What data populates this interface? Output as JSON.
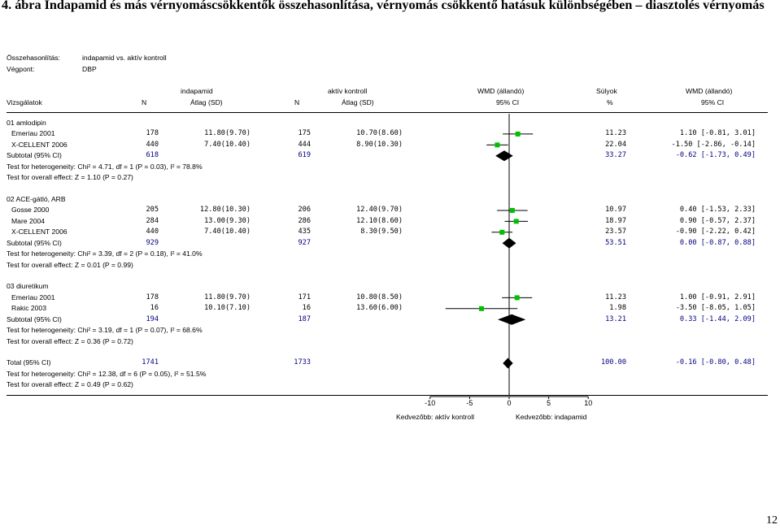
{
  "figure_title": "4. ábra Indapamid és más vérnyomáscsökkentők összehasonlítása, vérnyomás csökkentő hatásuk különbségében – diasztolés vérnyomás",
  "page_number": "12",
  "meta": {
    "comparison_label": "Összehasonlítás:",
    "comparison_value": "indapamid vs. aktív kontroll",
    "outcome_label": "Végpont:",
    "outcome_value": "DBP"
  },
  "headers": {
    "group1": "indapamid",
    "group2": "aktív kontroll",
    "wmd": "WMD (állandó)",
    "weight": "Súlyok",
    "wmd2": "WMD (állandó)",
    "study": "Vizsgálatok",
    "n1": "N",
    "mean1": "Átlag (SD)",
    "n2": "N",
    "mean2": "Átlag (SD)",
    "ci": "95% CI",
    "pct": "%",
    "ci2": "95% CI"
  },
  "chart_data": {
    "type": "forest",
    "x_ticks": [
      -10,
      -5,
      0,
      5,
      10
    ],
    "xlim": [
      -10,
      10
    ],
    "xlabel_left": "Kedvezőbb: aktív kontroll",
    "xlabel_right": "Kedvezőbb: indapamid",
    "rows": [
      {
        "kind": "group",
        "label": "01 amlodipin"
      },
      {
        "kind": "study",
        "label": "Emeriau 2001",
        "n1": "178",
        "m1": "11.80(9.70)",
        "n2": "175",
        "m2": "10.70(8.60)",
        "w": "11.23",
        "ci": "1.10 [-0.81, 3.01]",
        "est": 1.1,
        "lo": -0.81,
        "hi": 3.01
      },
      {
        "kind": "study",
        "label": "X-CELLENT 2006",
        "n1": "440",
        "m1": "7.40(10.40)",
        "n2": "444",
        "m2": "8.90(10.30)",
        "w": "22.04",
        "ci": "-1.50 [-2.86, -0.14]",
        "est": -1.5,
        "lo": -2.86,
        "hi": -0.14
      },
      {
        "kind": "subtotal",
        "label": "Subtotal (95% CI)",
        "n1": "618",
        "n2": "619",
        "w": "33.27",
        "ci": "-0.62 [-1.73, 0.49]",
        "est": -0.62,
        "lo": -1.73,
        "hi": 0.49
      },
      {
        "kind": "text",
        "label": "Test for heterogeneity: Chi² = 4.71, df = 1 (P = 0.03), I² = 78.8%"
      },
      {
        "kind": "text",
        "label": "Test for overall effect: Z = 1.10 (P = 0.27)"
      },
      {
        "kind": "blank"
      },
      {
        "kind": "group",
        "label": "02 ACE-gátló, ARB"
      },
      {
        "kind": "study",
        "label": "Gosse 2000",
        "n1": "205",
        "m1": "12.80(10.30)",
        "n2": "206",
        "m2": "12.40(9.70)",
        "w": "10.97",
        "ci": "0.40 [-1.53, 2.33]",
        "est": 0.4,
        "lo": -1.53,
        "hi": 2.33
      },
      {
        "kind": "study",
        "label": "Mare 2004",
        "n1": "284",
        "m1": "13.00(9.30)",
        "n2": "286",
        "m2": "12.10(8.60)",
        "w": "18.97",
        "ci": "0.90 [-0.57, 2.37]",
        "est": 0.9,
        "lo": -0.57,
        "hi": 2.37
      },
      {
        "kind": "study",
        "label": "X-CELLENT 2006",
        "n1": "440",
        "m1": "7.40(10.40)",
        "n2": "435",
        "m2": "8.30(9.50)",
        "w": "23.57",
        "ci": "-0.90 [-2.22, 0.42]",
        "est": -0.9,
        "lo": -2.22,
        "hi": 0.42
      },
      {
        "kind": "subtotal",
        "label": "Subtotal (95% CI)",
        "n1": "929",
        "n2": "927",
        "w": "53.51",
        "ci": "0.00 [-0.87, 0.88]",
        "est": 0.0,
        "lo": -0.87,
        "hi": 0.88
      },
      {
        "kind": "text",
        "label": "Test for heterogeneity: Chi² = 3.39, df = 2 (P = 0.18), I² = 41.0%"
      },
      {
        "kind": "text",
        "label": "Test for overall effect: Z = 0.01 (P = 0.99)"
      },
      {
        "kind": "blank"
      },
      {
        "kind": "group",
        "label": "03 diuretikum"
      },
      {
        "kind": "study",
        "label": "Emeriau 2001",
        "n1": "178",
        "m1": "11.80(9.70)",
        "n2": "171",
        "m2": "10.80(8.50)",
        "w": "11.23",
        "ci": "1.00 [-0.91, 2.91]",
        "est": 1.0,
        "lo": -0.91,
        "hi": 2.91
      },
      {
        "kind": "study",
        "label": "Rakic 2003",
        "n1": "16",
        "m1": "10.10(7.10)",
        "n2": "16",
        "m2": "13.60(6.00)",
        "w": "1.98",
        "ci": "-3.50 [-8.05, 1.05]",
        "est": -3.5,
        "lo": -8.05,
        "hi": 1.05
      },
      {
        "kind": "subtotal",
        "label": "Subtotal (95% CI)",
        "n1": "194",
        "n2": "187",
        "w": "13.21",
        "ci": "0.33 [-1.44, 2.09]",
        "est": 0.33,
        "lo": -1.44,
        "hi": 2.09
      },
      {
        "kind": "text",
        "label": "Test for heterogeneity: Chi² = 3.19, df = 1 (P = 0.07), I² = 68.6%"
      },
      {
        "kind": "text",
        "label": "Test for overall effect: Z = 0.36 (P = 0.72)"
      },
      {
        "kind": "blank"
      },
      {
        "kind": "total",
        "label": "Total (95% CI)",
        "n1": "1741",
        "n2": "1733",
        "w": "100.00",
        "ci": "-0.16 [-0.80, 0.48]",
        "est": -0.16,
        "lo": -0.8,
        "hi": 0.48
      },
      {
        "kind": "text",
        "label": "Test for heterogeneity: Chi² = 12.38, df = 6 (P = 0.05), I² = 51.5%"
      },
      {
        "kind": "text",
        "label": "Test for overall effect: Z = 0.49 (P = 0.62)"
      }
    ]
  }
}
